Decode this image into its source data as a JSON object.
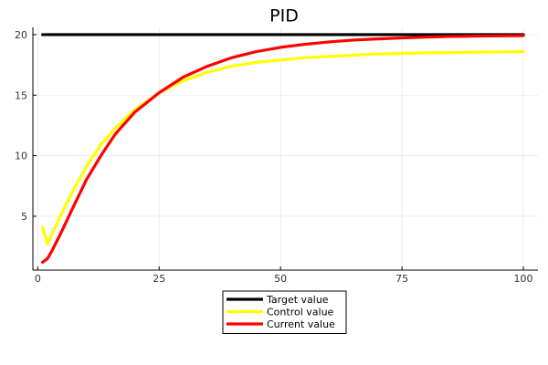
{
  "chart_data": {
    "type": "line",
    "title": "PID",
    "xlabel": "",
    "ylabel": "",
    "xlim": [
      -1,
      103
    ],
    "ylim": [
      0.55,
      20.6
    ],
    "xticks": [
      0,
      25,
      50,
      75,
      100
    ],
    "yticks": [
      5,
      10,
      15,
      20
    ],
    "grid": true,
    "legend_position": "bottom",
    "series": [
      {
        "name": "Target value",
        "color": "#000000",
        "x": [
          1,
          100
        ],
        "y": [
          20,
          20
        ]
      },
      {
        "name": "Control value",
        "color": "#ffff00",
        "x": [
          1,
          2,
          3,
          5,
          7,
          10,
          13,
          16,
          20,
          25,
          30,
          35,
          40,
          45,
          50,
          55,
          60,
          65,
          70,
          75,
          80,
          85,
          90,
          95,
          100
        ],
        "y": [
          4.1,
          2.7,
          3.6,
          5.3,
          6.9,
          9.1,
          10.9,
          12.3,
          13.8,
          15.2,
          16.2,
          16.9,
          17.4,
          17.7,
          17.9,
          18.1,
          18.2,
          18.3,
          18.4,
          18.45,
          18.5,
          18.52,
          18.55,
          18.57,
          18.6
        ]
      },
      {
        "name": "Current value",
        "color": "#ff0000",
        "x": [
          1,
          2,
          3,
          5,
          7,
          10,
          13,
          16,
          20,
          25,
          30,
          35,
          40,
          45,
          50,
          55,
          60,
          65,
          70,
          75,
          80,
          85,
          90,
          95,
          100
        ],
        "y": [
          1.2,
          1.5,
          2.2,
          3.8,
          5.5,
          8.0,
          10.0,
          11.8,
          13.6,
          15.2,
          16.5,
          17.4,
          18.1,
          18.6,
          18.95,
          19.2,
          19.4,
          19.55,
          19.65,
          19.73,
          19.8,
          19.85,
          19.88,
          19.9,
          19.92
        ]
      }
    ]
  }
}
